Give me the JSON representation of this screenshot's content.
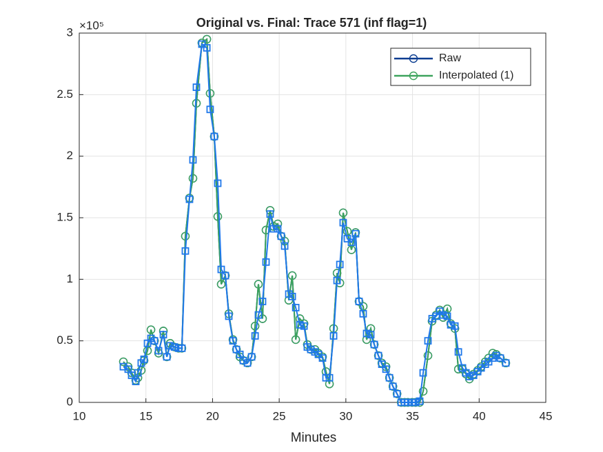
{
  "chart_data": {
    "type": "line",
    "title": "Original vs. Final: Trace 571 (inf flag=1)",
    "x_label": "Minutes",
    "y_exponent": "×10⁵",
    "xlim": [
      10,
      45
    ],
    "xticks": [
      10,
      15,
      20,
      25,
      30,
      35,
      40,
      45
    ],
    "ylim": [
      0,
      3
    ],
    "yticks": [
      0,
      0.5,
      1,
      1.5,
      2,
      2.5,
      3
    ],
    "grid": true,
    "legend": "northeast",
    "x": [
      13.31,
      13.67,
      13.93,
      14.24,
      14.4,
      14.65,
      14.86,
      15.12,
      15.38,
      15.64,
      15.95,
      16.31,
      16.57,
      16.82,
      17.14,
      17.45,
      17.7,
      17.96,
      18.27,
      18.53,
      18.79,
      19.2,
      19.57,
      19.82,
      20.13,
      20.39,
      20.65,
      20.96,
      21.22,
      21.53,
      21.79,
      22.05,
      22.31,
      22.62,
      22.93,
      23.19,
      23.44,
      23.75,
      24.01,
      24.32,
      24.58,
      24.89,
      25.15,
      25.41,
      25.72,
      25.98,
      26.24,
      26.55,
      26.86,
      27.11,
      27.37,
      27.68,
      27.94,
      28.25,
      28.51,
      28.77,
      29.08,
      29.34,
      29.55,
      29.8,
      30.11,
      30.42,
      30.73,
      30.99,
      31.3,
      31.56,
      31.87,
      32.13,
      32.44,
      32.7,
      33.01,
      33.27,
      33.53,
      33.84,
      34.15,
      34.41,
      34.66,
      34.97,
      35.23,
      35.54,
      35.8,
      36.16,
      36.47,
      36.78,
      37.04,
      37.3,
      37.61,
      37.87,
      38.18,
      38.44,
      38.75,
      39.01,
      39.27,
      39.58,
      39.89,
      40.15,
      40.46,
      40.71,
      41.02,
      41.28,
      41.59,
      42.0
    ],
    "series": [
      {
        "name": "Raw",
        "color": "#0b3d91",
        "marker": "circle",
        "values": [
          0.33,
          0.29,
          0.24,
          0.18,
          0.2,
          0.26,
          0.34,
          0.42,
          0.59,
          0.5,
          0.4,
          0.58,
          0.37,
          0.48,
          0.45,
          0.44,
          0.44,
          1.35,
          1.66,
          1.82,
          2.43,
          2.92,
          2.95,
          2.51,
          2.16,
          1.51,
          0.96,
          1.03,
          0.72,
          0.51,
          0.43,
          0.37,
          0.34,
          0.32,
          0.37,
          0.62,
          0.96,
          0.68,
          1.4,
          1.56,
          1.43,
          1.45,
          1.35,
          1.31,
          0.83,
          1.03,
          0.51,
          0.68,
          0.64,
          0.47,
          0.43,
          0.43,
          0.4,
          0.37,
          0.25,
          0.15,
          0.6,
          1.05,
          0.97,
          1.54,
          1.39,
          1.24,
          1.38,
          0.82,
          0.78,
          0.51,
          0.6,
          0.47,
          0.38,
          0.32,
          0.29,
          0.2,
          0.13,
          0.07,
          0,
          0,
          0,
          0,
          0,
          0,
          0.09,
          0.38,
          0.66,
          0.71,
          0.75,
          0.69,
          0.76,
          0.64,
          0.6,
          0.27,
          0.27,
          0.23,
          0.19,
          0.23,
          0.26,
          0.29,
          0.33,
          0.36,
          0.4,
          0.39,
          0.36,
          0.32
        ]
      },
      {
        "name": "Interpolated (1)",
        "color": "#3ca35c",
        "marker": "circle",
        "values": [
          0.33,
          0.29,
          0.24,
          0.18,
          0.2,
          0.26,
          0.34,
          0.42,
          0.59,
          0.5,
          0.4,
          0.58,
          0.37,
          0.48,
          0.45,
          0.44,
          0.44,
          1.35,
          1.66,
          1.82,
          2.43,
          2.92,
          2.95,
          2.51,
          2.16,
          1.51,
          0.96,
          1.03,
          0.72,
          0.51,
          0.43,
          0.37,
          0.34,
          0.32,
          0.37,
          0.62,
          0.96,
          0.68,
          1.4,
          1.56,
          1.43,
          1.45,
          1.35,
          1.31,
          0.83,
          1.03,
          0.51,
          0.68,
          0.64,
          0.47,
          0.43,
          0.43,
          0.4,
          0.37,
          0.25,
          0.15,
          0.6,
          1.05,
          0.97,
          1.54,
          1.39,
          1.24,
          1.38,
          0.82,
          0.78,
          0.51,
          0.6,
          0.47,
          0.38,
          0.32,
          0.29,
          0.2,
          0.13,
          0.07,
          0,
          0,
          0,
          0,
          0,
          0,
          0.09,
          0.38,
          0.66,
          0.71,
          0.75,
          0.69,
          0.76,
          0.64,
          0.6,
          0.27,
          0.27,
          0.23,
          0.19,
          0.23,
          0.26,
          0.29,
          0.33,
          0.36,
          0.4,
          0.39,
          0.36,
          0.32
        ]
      },
      {
        "color": "#1f78ea",
        "marker": "square",
        "values": [
          0.29,
          0.27,
          0.22,
          0.17,
          0.24,
          0.32,
          0.35,
          0.48,
          0.52,
          0.5,
          0.42,
          0.55,
          0.37,
          0.46,
          0.45,
          0.44,
          0.44,
          1.23,
          1.65,
          1.97,
          2.56,
          2.91,
          2.88,
          2.38,
          2.16,
          1.78,
          1.08,
          1.03,
          0.7,
          0.5,
          0.43,
          0.39,
          0.34,
          0.32,
          0.37,
          0.54,
          0.71,
          0.82,
          1.14,
          1.53,
          1.41,
          1.41,
          1.35,
          1.27,
          0.88,
          0.86,
          0.77,
          0.63,
          0.62,
          0.45,
          0.43,
          0.41,
          0.39,
          0.36,
          0.2,
          0.2,
          0.54,
          0.99,
          1.12,
          1.46,
          1.33,
          1.3,
          1.37,
          0.82,
          0.72,
          0.56,
          0.55,
          0.47,
          0.38,
          0.31,
          0.27,
          0.2,
          0.13,
          0.07,
          0,
          0,
          0,
          0,
          0,
          0.01,
          0.24,
          0.5,
          0.68,
          0.7,
          0.74,
          0.71,
          0.7,
          0.63,
          0.62,
          0.41,
          0.28,
          0.24,
          0.21,
          0.22,
          0.25,
          0.28,
          0.31,
          0.33,
          0.36,
          0.38,
          0.36,
          0.32
        ]
      }
    ]
  }
}
